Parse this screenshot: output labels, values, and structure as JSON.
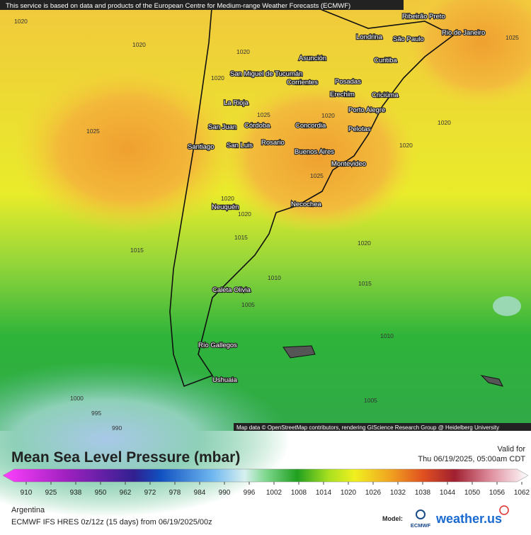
{
  "banner": "This service is based on data and products of the European Centre for Medium-range Weather Forecasts (ECMWF)",
  "attribution": "Map data © OpenStreetMap contributors, rendering GIScience Research Group @ Heidelberg University",
  "cities": [
    "Ribeirão Preto",
    "Londrina",
    "São Paulo",
    "Rio de Janeiro",
    "Asunción",
    "Curitiba",
    "San Miguel de Tucumán",
    "Corrientes",
    "Posadas",
    "Erechim",
    "Criciúma",
    "La Rioja",
    "Porto Alegre",
    "San Juan",
    "Córdoba",
    "Concordia",
    "Pelotas",
    "Santiago",
    "San Luis",
    "Rosario",
    "Buenos Aires",
    "Montevideo",
    "Neuquén",
    "Necochea",
    "Caleta Olivia",
    "Río Gallegos",
    "Ushuaia"
  ],
  "isobar_labels": [
    1020,
    1020,
    1020,
    1020,
    1025,
    1025,
    1020,
    1020,
    1020,
    1025,
    1025,
    1020,
    1020,
    1015,
    1020,
    1015,
    1010,
    1015,
    1005,
    1010,
    1000,
    995,
    1005,
    990
  ],
  "title": "Mean Sea Level Pressure (mbar)",
  "valid_label": "Valid for",
  "valid_time": "Thu 06/19/2025, 05:00am CDT",
  "colorbar_ticks": [
    910,
    925,
    938,
    950,
    962,
    972,
    978,
    984,
    990,
    996,
    1002,
    1008,
    1014,
    1020,
    1026,
    1032,
    1038,
    1044,
    1050,
    1056,
    1062
  ],
  "region": "Argentina",
  "run": "ECMWF IFS HRES 0z/12z (15 days)  from  06/19/2025/00z",
  "model_label": "Model:",
  "ecmwf": "ECMWF",
  "brand": "weather.us"
}
